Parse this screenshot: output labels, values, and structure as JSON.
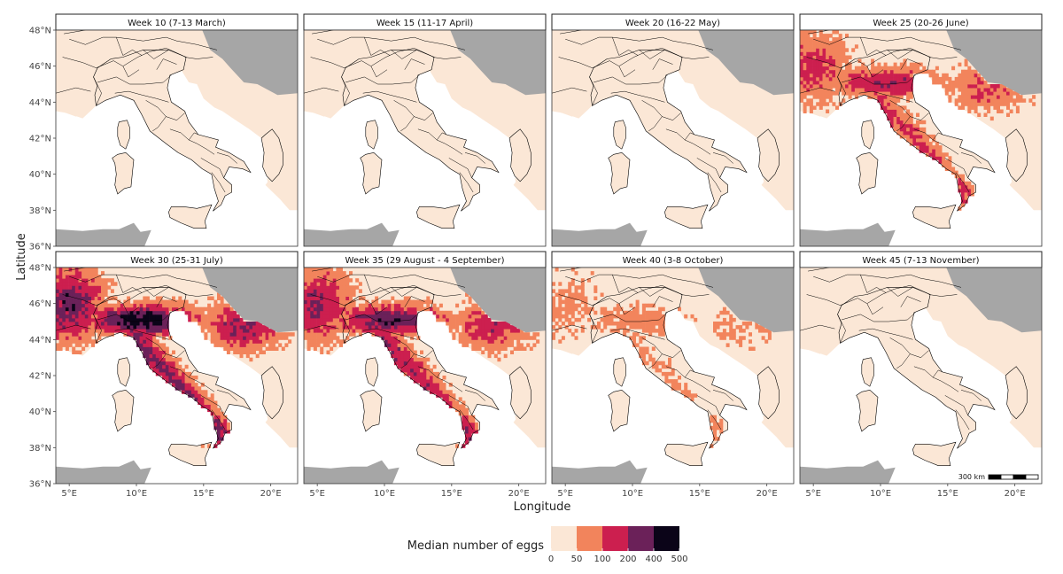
{
  "figure": {
    "x_axis_title": "Longitude",
    "y_axis_title": "Latitude",
    "lon_ticks": [
      "5°E",
      "10°E",
      "15°E",
      "20°E"
    ],
    "lat_ticks": [
      "48°N",
      "46°N",
      "44°N",
      "42°N",
      "40°N",
      "38°N",
      "36°N"
    ],
    "scale_bar_label": "300 km"
  },
  "panels": [
    {
      "title": "Week 10 (7-13 March)",
      "level": 0
    },
    {
      "title": "Week 15 (11-17 April)",
      "level": 0
    },
    {
      "title": "Week 20 (16-22 May)",
      "level": 0.2
    },
    {
      "title": "Week 25 (20-26 June)",
      "level": 2
    },
    {
      "title": "Week 30 (25-31 July)",
      "level": 3
    },
    {
      "title": "Week 35 (29 August - 4 September)",
      "level": 2.5
    },
    {
      "title": "Week 40 (3-8 October)",
      "level": 1
    },
    {
      "title": "Week 45 (7-13 November)",
      "level": 0
    }
  ],
  "legend": {
    "title": "Median number of eggs",
    "breaks": [
      "0",
      "50",
      "100",
      "200",
      "400",
      "500"
    ],
    "colors": [
      "#fbe7d6",
      "#f2845c",
      "#cc1f4f",
      "#6b2159",
      "#0b0418"
    ]
  },
  "colors": {
    "land_background": "#fbe7d6",
    "sea": "#ffffff",
    "non_study_land": "#a6a6a6",
    "border": "#000000"
  }
}
